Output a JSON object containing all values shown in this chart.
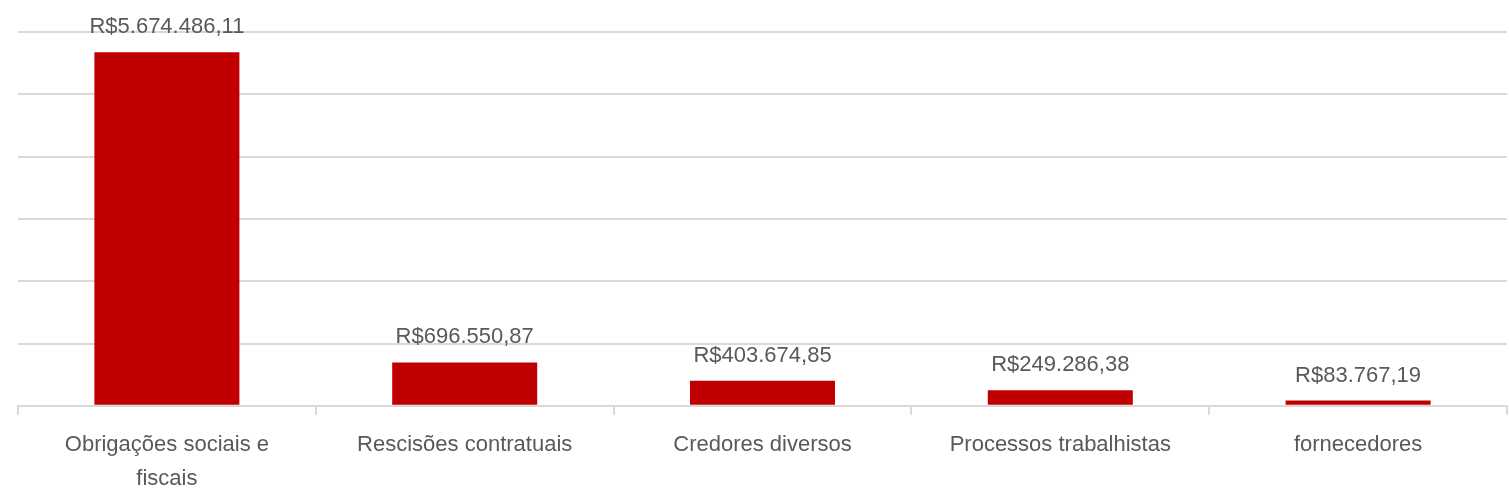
{
  "chart_data": {
    "type": "bar",
    "categories": [
      "Obrigações sociais e fiscais",
      "Rescisões contratuais",
      "Credores diversos",
      "Processos trabalhistas",
      "fornecedores"
    ],
    "values": [
      5674486.11,
      696550.87,
      403674.85,
      249286.38,
      83767.19
    ],
    "value_labels": [
      "R$5.674.486,11",
      "R$696.550,87",
      "R$403.674,85",
      "R$249.286,38",
      "R$83.767,19"
    ],
    "color": "#c00000",
    "ylim": [
      0,
      6000000
    ],
    "yticks": [
      {
        "value": 0,
        "label": null
      },
      {
        "value": 1000000,
        "label": null
      },
      {
        "value": 2000000,
        "label": null
      },
      {
        "value": 3000000,
        "label": null
      },
      {
        "value": 4000000,
        "label": null
      },
      {
        "value": 5000000,
        "label": null
      },
      {
        "value": 6000000,
        "label": null
      }
    ],
    "grid": "y",
    "tick_labels": "x"
  }
}
